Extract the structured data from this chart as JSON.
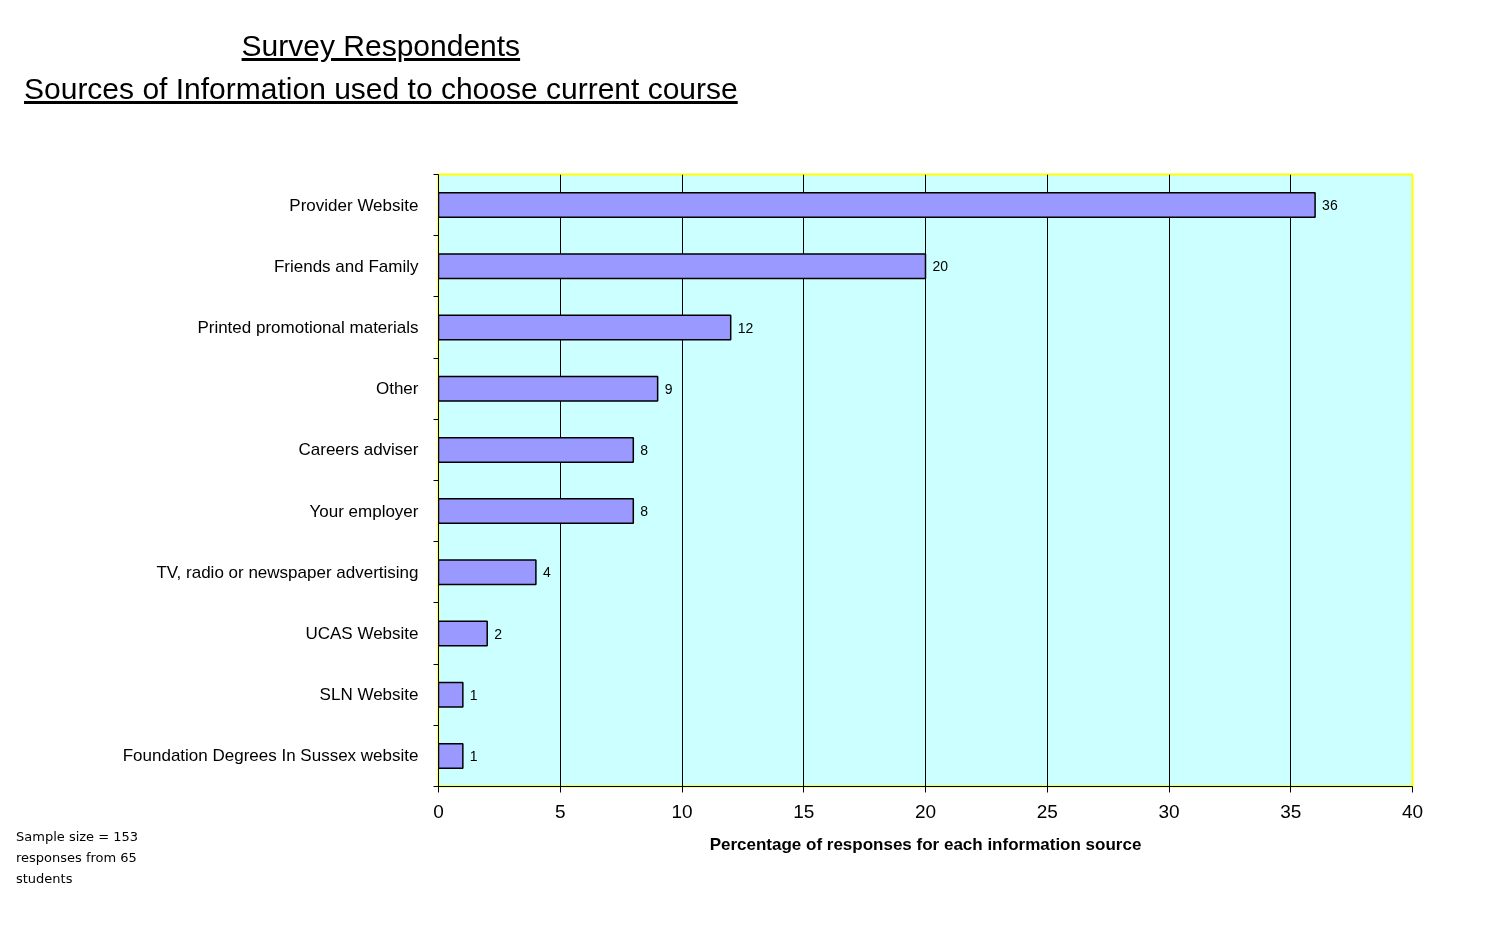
{
  "chart_data": {
    "type": "bar",
    "orientation": "horizontal",
    "title": "Survey Respondents",
    "subtitle": "Sources of Information used to choose current course",
    "xlabel": "Percentage of responses for each information source",
    "categories": [
      "Provider Website",
      "Friends and Family",
      "Printed promotional materials",
      "Other",
      "Careers adviser",
      "Your employer",
      "TV, radio or newspaper advertising",
      "UCAS Website",
      "SLN Website",
      "Foundation Degrees In Sussex website"
    ],
    "values": [
      36,
      20,
      12,
      9,
      8,
      8,
      4,
      2,
      1,
      1
    ],
    "color": "#9999ff",
    "xlim": [
      0,
      40
    ],
    "xticks": [
      0,
      5,
      10,
      15,
      20,
      25,
      30,
      35,
      40
    ],
    "grid": "x",
    "data_labels": true,
    "annotations": [
      "Sample size = 153 responses from 65 students"
    ]
  }
}
